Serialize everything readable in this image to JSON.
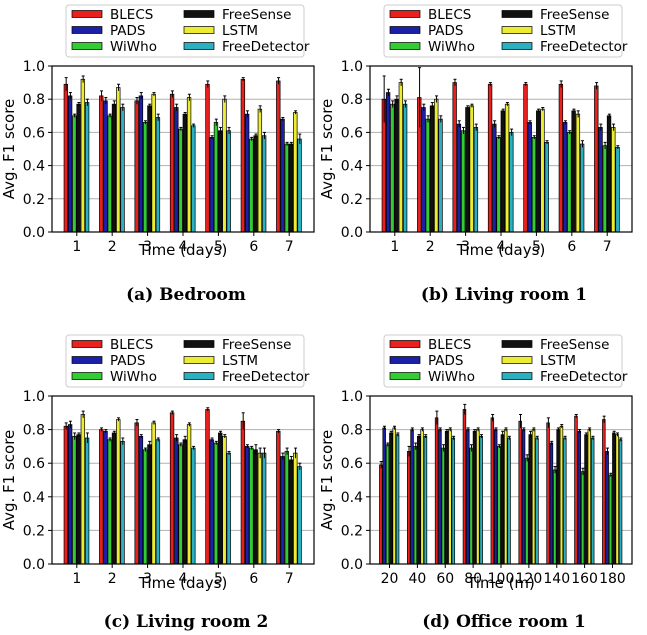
{
  "chart_data": [
    {
      "type": "bar",
      "caption": "(a) Bedroom",
      "xlabel": "Time (days)",
      "ylabel": "Avg. F1 score",
      "ylim": [
        0.0,
        1.0
      ],
      "yticks": [
        "0.0",
        "0.2",
        "0.4",
        "0.6",
        "0.8",
        "1.0"
      ],
      "grid": "horizontal",
      "legend": "top",
      "categories": [
        "1",
        "2",
        "3",
        "4",
        "5",
        "6",
        "7"
      ],
      "series": [
        {
          "name": "BLECS",
          "color": "#e8201e",
          "values": [
            0.89,
            0.82,
            0.79,
            0.83,
            0.89,
            0.92,
            0.91
          ],
          "errors": [
            0.04,
            0.03,
            0.02,
            0.02,
            0.02,
            0.01,
            0.02
          ]
        },
        {
          "name": "PADS",
          "color": "#1c1fa8",
          "values": [
            0.82,
            0.79,
            0.82,
            0.75,
            0.57,
            0.71,
            0.68
          ],
          "errors": [
            0.02,
            0.02,
            0.02,
            0.02,
            0.01,
            0.02,
            0.01
          ]
        },
        {
          "name": "WiWho",
          "color": "#33cc33",
          "values": [
            0.7,
            0.7,
            0.66,
            0.62,
            0.66,
            0.56,
            0.53
          ],
          "errors": [
            0.01,
            0.01,
            0.01,
            0.01,
            0.02,
            0.01,
            0.01
          ]
        },
        {
          "name": "FreeSense",
          "color": "#111111",
          "values": [
            0.77,
            0.77,
            0.76,
            0.71,
            0.61,
            0.58,
            0.53
          ],
          "errors": [
            0.01,
            0.02,
            0.01,
            0.01,
            0.02,
            0.01,
            0.01
          ]
        },
        {
          "name": "LSTM",
          "color": "#ecec33",
          "values": [
            0.92,
            0.87,
            0.83,
            0.81,
            0.8,
            0.74,
            0.72
          ],
          "errors": [
            0.02,
            0.02,
            0.01,
            0.02,
            0.02,
            0.02,
            0.01
          ]
        },
        {
          "name": "FreeDetector",
          "color": "#2ab0c0",
          "values": [
            0.78,
            0.75,
            0.69,
            0.64,
            0.61,
            0.58,
            0.56
          ],
          "errors": [
            0.02,
            0.02,
            0.02,
            0.01,
            0.02,
            0.02,
            0.03
          ]
        }
      ]
    },
    {
      "type": "bar",
      "caption": "(b) Living room 1",
      "xlabel": "Time (days)",
      "ylabel": "Avg. F1 score",
      "ylim": [
        0.0,
        1.0
      ],
      "yticks": [
        "0.0",
        "0.2",
        "0.4",
        "0.6",
        "0.8",
        "1.0"
      ],
      "grid": "horizontal",
      "legend": "top",
      "categories": [
        "1",
        "2",
        "3",
        "4",
        "5",
        "6",
        "7"
      ],
      "series": [
        {
          "name": "BLECS",
          "color": "#e8201e",
          "values": [
            0.8,
            0.81,
            0.9,
            0.89,
            0.89,
            0.89,
            0.88
          ],
          "errors": [
            0.14,
            0.18,
            0.02,
            0.01,
            0.01,
            0.02,
            0.02
          ]
        },
        {
          "name": "PADS",
          "color": "#1c1fa8",
          "values": [
            0.84,
            0.75,
            0.65,
            0.65,
            0.66,
            0.66,
            0.63
          ],
          "errors": [
            0.02,
            0.02,
            0.02,
            0.02,
            0.01,
            0.01,
            0.02
          ]
        },
        {
          "name": "WiWho",
          "color": "#33cc33",
          "values": [
            0.77,
            0.68,
            0.61,
            0.57,
            0.57,
            0.6,
            0.52
          ],
          "errors": [
            0.02,
            0.02,
            0.02,
            0.01,
            0.01,
            0.01,
            0.02
          ]
        },
        {
          "name": "FreeSense",
          "color": "#111111",
          "values": [
            0.8,
            0.76,
            0.75,
            0.73,
            0.73,
            0.73,
            0.7
          ],
          "errors": [
            0.02,
            0.02,
            0.01,
            0.01,
            0.01,
            0.01,
            0.01
          ]
        },
        {
          "name": "LSTM",
          "color": "#ecec33",
          "values": [
            0.9,
            0.8,
            0.76,
            0.77,
            0.74,
            0.71,
            0.63
          ],
          "errors": [
            0.02,
            0.02,
            0.01,
            0.01,
            0.01,
            0.02,
            0.02
          ]
        },
        {
          "name": "FreeDetector",
          "color": "#2ab0c0",
          "values": [
            0.77,
            0.68,
            0.63,
            0.6,
            0.54,
            0.53,
            0.51
          ],
          "errors": [
            0.02,
            0.02,
            0.02,
            0.02,
            0.01,
            0.02,
            0.01
          ]
        }
      ]
    },
    {
      "type": "bar",
      "caption": "(c) Living room 2",
      "xlabel": "Time (days)",
      "ylabel": "Avg. F1 score",
      "ylim": [
        0.0,
        1.0
      ],
      "yticks": [
        "0.0",
        "0.2",
        "0.4",
        "0.6",
        "0.8",
        "1.0"
      ],
      "grid": "horizontal",
      "legend": "top",
      "categories": [
        "1",
        "2",
        "3",
        "4",
        "5",
        "6",
        "7"
      ],
      "series": [
        {
          "name": "BLECS",
          "color": "#e8201e",
          "values": [
            0.82,
            0.8,
            0.84,
            0.9,
            0.92,
            0.85,
            0.79
          ],
          "errors": [
            0.02,
            0.01,
            0.02,
            0.01,
            0.01,
            0.05,
            0.01
          ]
        },
        {
          "name": "PADS",
          "color": "#1c1fa8",
          "values": [
            0.83,
            0.79,
            0.76,
            0.75,
            0.74,
            0.7,
            0.64
          ],
          "errors": [
            0.02,
            0.01,
            0.01,
            0.02,
            0.01,
            0.01,
            0.02
          ]
        },
        {
          "name": "WiWho",
          "color": "#33cc33",
          "values": [
            0.76,
            0.74,
            0.68,
            0.71,
            0.72,
            0.69,
            0.67
          ],
          "errors": [
            0.02,
            0.01,
            0.01,
            0.01,
            0.01,
            0.01,
            0.02
          ]
        },
        {
          "name": "FreeSense",
          "color": "#111111",
          "values": [
            0.77,
            0.78,
            0.71,
            0.74,
            0.78,
            0.68,
            0.62
          ],
          "errors": [
            0.01,
            0.01,
            0.02,
            0.02,
            0.01,
            0.03,
            0.02
          ]
        },
        {
          "name": "LSTM",
          "color": "#ecec33",
          "values": [
            0.89,
            0.86,
            0.84,
            0.83,
            0.76,
            0.66,
            0.66
          ],
          "errors": [
            0.02,
            0.01,
            0.01,
            0.01,
            0.01,
            0.03,
            0.03
          ]
        },
        {
          "name": "FreeDetector",
          "color": "#2ab0c0",
          "values": [
            0.75,
            0.73,
            0.74,
            0.69,
            0.66,
            0.66,
            0.58
          ],
          "errors": [
            0.03,
            0.02,
            0.01,
            0.01,
            0.01,
            0.03,
            0.02
          ]
        }
      ]
    },
    {
      "type": "bar",
      "caption": "(d) Office room 1",
      "xlabel": "Time (m)",
      "ylabel": "Avg. F1 score",
      "ylim": [
        0.0,
        1.0
      ],
      "yticks": [
        "0.0",
        "0.2",
        "0.4",
        "0.6",
        "0.8",
        "1.0"
      ],
      "grid": "horizontal",
      "legend": "top",
      "categories": [
        "20",
        "40",
        "60",
        "80",
        "100",
        "120",
        "140",
        "160",
        "180"
      ],
      "series": [
        {
          "name": "BLECS",
          "color": "#e8201e",
          "values": [
            0.59,
            0.67,
            0.87,
            0.92,
            0.87,
            0.85,
            0.84,
            0.88,
            0.86
          ],
          "errors": [
            0.02,
            0.03,
            0.04,
            0.03,
            0.02,
            0.04,
            0.03,
            0.01,
            0.02
          ]
        },
        {
          "name": "PADS",
          "color": "#1c1fa8",
          "values": [
            0.81,
            0.8,
            0.8,
            0.8,
            0.8,
            0.8,
            0.72,
            0.79,
            0.67
          ],
          "errors": [
            0.01,
            0.01,
            0.01,
            0.01,
            0.01,
            0.01,
            0.01,
            0.01,
            0.02
          ]
        },
        {
          "name": "WiWho",
          "color": "#33cc33",
          "values": [
            0.71,
            0.7,
            0.69,
            0.69,
            0.7,
            0.63,
            0.56,
            0.55,
            0.53
          ],
          "errors": [
            0.01,
            0.02,
            0.02,
            0.02,
            0.01,
            0.02,
            0.02,
            0.02,
            0.01
          ]
        },
        {
          "name": "FreeSense",
          "color": "#111111",
          "values": [
            0.78,
            0.76,
            0.79,
            0.79,
            0.77,
            0.77,
            0.8,
            0.77,
            0.78
          ],
          "errors": [
            0.01,
            0.01,
            0.01,
            0.01,
            0.02,
            0.02,
            0.01,
            0.01,
            0.01
          ]
        },
        {
          "name": "LSTM",
          "color": "#ecec33",
          "values": [
            0.81,
            0.8,
            0.8,
            0.8,
            0.8,
            0.8,
            0.82,
            0.8,
            0.77
          ],
          "errors": [
            0.01,
            0.01,
            0.01,
            0.01,
            0.01,
            0.01,
            0.01,
            0.01,
            0.01
          ]
        },
        {
          "name": "FreeDetector",
          "color": "#2ab0c0",
          "values": [
            0.77,
            0.76,
            0.75,
            0.76,
            0.75,
            0.75,
            0.75,
            0.75,
            0.74
          ],
          "errors": [
            0.01,
            0.01,
            0.01,
            0.01,
            0.01,
            0.01,
            0.01,
            0.01,
            0.01
          ]
        }
      ]
    }
  ]
}
